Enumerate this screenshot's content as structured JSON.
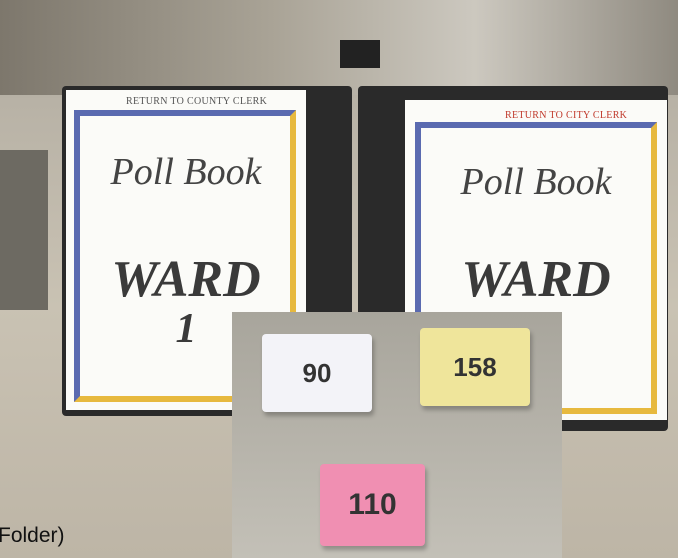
{
  "binders": [
    {
      "label": "RETURN TO COUNTY CLERK",
      "title": "Poll Book",
      "ward": "WARD",
      "number": "1"
    },
    {
      "label": "RETURN TO CITY CLERK",
      "title": "Poll Book",
      "ward": "WARD"
    }
  ],
  "pads": [
    {
      "label": "90"
    },
    {
      "label": "158"
    },
    {
      "label": "110"
    }
  ],
  "caption": "Folder)"
}
